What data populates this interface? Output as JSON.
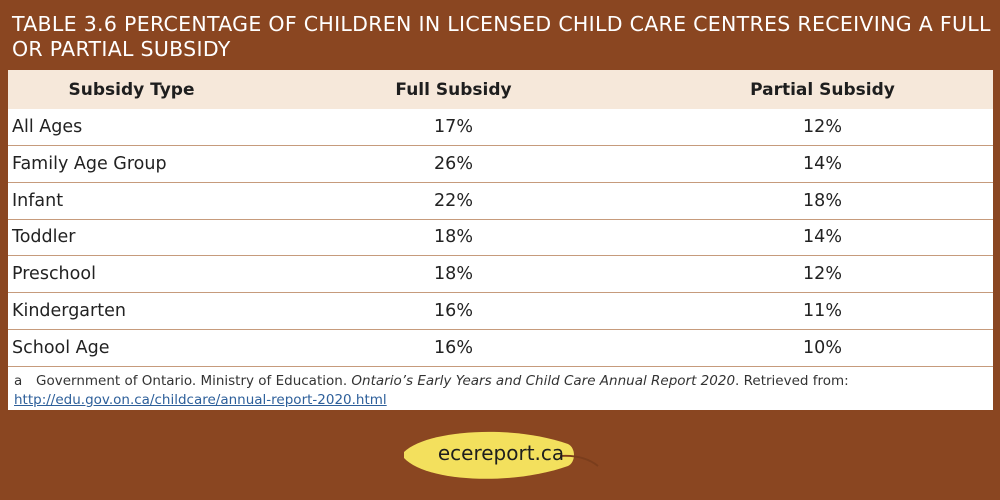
{
  "title": "TABLE 3.6 PERCENTAGE OF CHILDREN IN LICENSED CHILD CARE CENTRES RECEIVING A FULL OR PARTIAL SUBSIDY",
  "columns": [
    "Subsidy Type",
    "Full Subsidy",
    "Partial Subsidy"
  ],
  "rows": [
    {
      "type": "All Ages",
      "full": "17%",
      "partial": "12%"
    },
    {
      "type": "Family Age Group",
      "full": "26%",
      "partial": "14%"
    },
    {
      "type": "Infant",
      "full": "22%",
      "partial": "18%"
    },
    {
      "type": "Toddler",
      "full": "18%",
      "partial": "14%"
    },
    {
      "type": "Preschool",
      "full": "18%",
      "partial": "12%"
    },
    {
      "type": "Kindergarten",
      "full": "16%",
      "partial": "11%"
    },
    {
      "type": "School Age",
      "full": "16%",
      "partial": "10%"
    }
  ],
  "footnote": {
    "marker": "a",
    "text": "Government of Ontario. Ministry of Education. ",
    "source_title": "Ontario’s Early Years and Child Care Annual Report 2020",
    "suffix": ". Retrieved from: ",
    "link": "http://edu.gov.on.ca/childcare/annual-report-2020.html"
  },
  "brand": {
    "label": "ecereport.ca",
    "leaf_color": "#f3e05d",
    "stem_color": "#7a3d1c"
  },
  "colors": {
    "background": "#8a4621",
    "header_row": "#f6e8da",
    "row_border": "#c69b7c"
  }
}
